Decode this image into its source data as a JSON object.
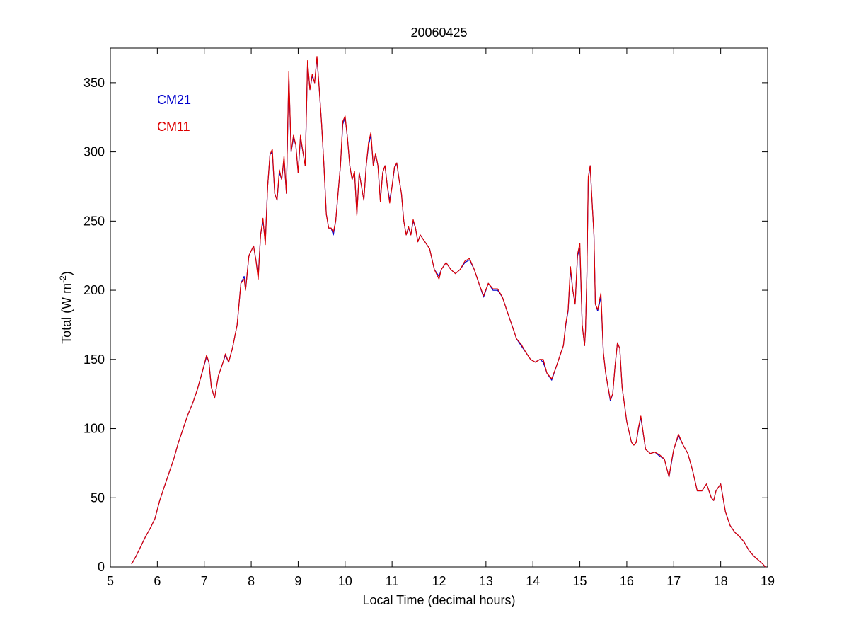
{
  "chart_data": {
    "type": "line",
    "title": "20060425",
    "xlabel": "Local Time (decimal hours)",
    "ylabel_main": "Total (W m",
    "ylabel_sup": "-2",
    "ylabel_close": ")",
    "xlim": [
      5,
      19
    ],
    "ylim": [
      0,
      375
    ],
    "x_ticks": [
      5,
      6,
      7,
      8,
      9,
      10,
      11,
      12,
      13,
      14,
      15,
      16,
      17,
      18,
      19
    ],
    "y_ticks": [
      0,
      50,
      100,
      150,
      200,
      250,
      300,
      350
    ],
    "grid": false,
    "legend_position": "top-left",
    "series": [
      {
        "name": "CM21",
        "color": "#0000cc",
        "x": [
          5.45,
          5.55,
          5.65,
          5.75,
          5.85,
          5.95,
          6.05,
          6.15,
          6.25,
          6.35,
          6.45,
          6.55,
          6.65,
          6.75,
          6.85,
          6.95,
          7.05,
          7.1,
          7.15,
          7.22,
          7.3,
          7.4,
          7.45,
          7.52,
          7.6,
          7.7,
          7.78,
          7.85,
          7.88,
          7.95,
          8.05,
          8.1,
          8.15,
          8.2,
          8.25,
          8.3,
          8.35,
          8.4,
          8.45,
          8.5,
          8.55,
          8.6,
          8.65,
          8.7,
          8.75,
          8.8,
          8.85,
          8.9,
          8.95,
          9.0,
          9.05,
          9.1,
          9.15,
          9.2,
          9.25,
          9.3,
          9.35,
          9.4,
          9.45,
          9.5,
          9.55,
          9.6,
          9.65,
          9.7,
          9.75,
          9.8,
          9.85,
          9.9,
          9.95,
          10.0,
          10.05,
          10.1,
          10.15,
          10.2,
          10.25,
          10.3,
          10.35,
          10.4,
          10.45,
          10.5,
          10.55,
          10.6,
          10.65,
          10.7,
          10.75,
          10.8,
          10.85,
          10.9,
          10.95,
          11.0,
          11.05,
          11.1,
          11.15,
          11.2,
          11.25,
          11.3,
          11.35,
          11.4,
          11.45,
          11.5,
          11.55,
          11.6,
          11.7,
          11.8,
          11.9,
          12.0,
          12.05,
          12.15,
          12.25,
          12.35,
          12.45,
          12.55,
          12.65,
          12.75,
          12.85,
          12.95,
          13.05,
          13.15,
          13.25,
          13.35,
          13.45,
          13.55,
          13.65,
          13.75,
          13.85,
          13.95,
          14.05,
          14.15,
          14.22,
          14.3,
          14.4,
          14.5,
          14.6,
          14.65,
          14.7,
          14.75,
          14.8,
          14.85,
          14.9,
          14.95,
          15.0,
          15.05,
          15.1,
          15.12,
          15.15,
          15.18,
          15.22,
          15.25,
          15.3,
          15.33,
          15.38,
          15.45,
          15.5,
          15.55,
          15.6,
          15.65,
          15.7,
          15.75,
          15.8,
          15.85,
          15.9,
          16.0,
          16.1,
          16.15,
          16.2,
          16.25,
          16.3,
          16.4,
          16.5,
          16.6,
          16.7,
          16.8,
          16.9,
          16.95,
          17.0,
          17.1,
          17.2,
          17.3,
          17.4,
          17.5,
          17.6,
          17.7,
          17.8,
          17.85,
          17.9,
          18.0,
          18.1,
          18.2,
          18.3,
          18.4,
          18.5,
          18.6,
          18.7,
          18.8,
          18.9,
          18.95
        ],
        "y": [
          2,
          8,
          15,
          22,
          28,
          35,
          48,
          58,
          68,
          78,
          90,
          100,
          110,
          118,
          128,
          140,
          152,
          148,
          130,
          122,
          138,
          148,
          153,
          148,
          158,
          175,
          205,
          210,
          200,
          225,
          232,
          222,
          210,
          240,
          250,
          235,
          275,
          298,
          300,
          270,
          265,
          285,
          280,
          295,
          270,
          355,
          300,
          310,
          305,
          285,
          310,
          300,
          290,
          365,
          345,
          355,
          350,
          368,
          345,
          320,
          290,
          255,
          245,
          245,
          240,
          250,
          270,
          290,
          320,
          325,
          310,
          290,
          280,
          285,
          255,
          285,
          275,
          265,
          290,
          305,
          312,
          290,
          298,
          290,
          265,
          285,
          290,
          275,
          265,
          275,
          288,
          292,
          280,
          270,
          250,
          240,
          245,
          240,
          250,
          245,
          235,
          240,
          235,
          230,
          215,
          210,
          215,
          220,
          215,
          212,
          215,
          220,
          222,
          215,
          205,
          195,
          205,
          200,
          200,
          195,
          185,
          175,
          165,
          160,
          155,
          150,
          148,
          150,
          148,
          140,
          135,
          145,
          155,
          160,
          175,
          185,
          215,
          200,
          190,
          225,
          230,
          175,
          160,
          170,
          210,
          280,
          290,
          270,
          240,
          190,
          185,
          195,
          155,
          140,
          130,
          120,
          125,
          145,
          162,
          158,
          130,
          105,
          90,
          88,
          90,
          100,
          108,
          85,
          82,
          83,
          80,
          78,
          65,
          75,
          85,
          95,
          88,
          82,
          70,
          55,
          55,
          60,
          50,
          48,
          55,
          60,
          40,
          30,
          25,
          22,
          18,
          12,
          8,
          5,
          2,
          0
        ]
      },
      {
        "name": "CM11",
        "color": "#dd0000",
        "x": [
          5.45,
          5.55,
          5.65,
          5.75,
          5.85,
          5.95,
          6.05,
          6.15,
          6.25,
          6.35,
          6.45,
          6.55,
          6.65,
          6.75,
          6.85,
          6.95,
          7.05,
          7.1,
          7.15,
          7.22,
          7.3,
          7.4,
          7.45,
          7.52,
          7.6,
          7.7,
          7.78,
          7.85,
          7.88,
          7.95,
          8.05,
          8.1,
          8.15,
          8.2,
          8.25,
          8.3,
          8.35,
          8.4,
          8.45,
          8.5,
          8.55,
          8.6,
          8.65,
          8.7,
          8.75,
          8.8,
          8.85,
          8.9,
          8.95,
          9.0,
          9.05,
          9.1,
          9.15,
          9.2,
          9.25,
          9.3,
          9.35,
          9.4,
          9.45,
          9.5,
          9.55,
          9.6,
          9.65,
          9.7,
          9.75,
          9.8,
          9.85,
          9.9,
          9.95,
          10.0,
          10.05,
          10.1,
          10.15,
          10.2,
          10.25,
          10.3,
          10.35,
          10.4,
          10.45,
          10.5,
          10.55,
          10.6,
          10.65,
          10.7,
          10.75,
          10.8,
          10.85,
          10.9,
          10.95,
          11.0,
          11.05,
          11.1,
          11.15,
          11.2,
          11.25,
          11.3,
          11.35,
          11.4,
          11.45,
          11.5,
          11.55,
          11.6,
          11.7,
          11.8,
          11.9,
          12.0,
          12.05,
          12.15,
          12.25,
          12.35,
          12.45,
          12.55,
          12.65,
          12.75,
          12.85,
          12.95,
          13.05,
          13.15,
          13.25,
          13.35,
          13.45,
          13.55,
          13.65,
          13.75,
          13.85,
          13.95,
          14.05,
          14.15,
          14.22,
          14.3,
          14.4,
          14.5,
          14.6,
          14.65,
          14.7,
          14.75,
          14.8,
          14.85,
          14.9,
          14.95,
          15.0,
          15.05,
          15.1,
          15.12,
          15.15,
          15.18,
          15.22,
          15.25,
          15.3,
          15.33,
          15.38,
          15.45,
          15.5,
          15.55,
          15.6,
          15.65,
          15.7,
          15.75,
          15.8,
          15.85,
          15.9,
          16.0,
          16.1,
          16.15,
          16.2,
          16.25,
          16.3,
          16.4,
          16.5,
          16.6,
          16.7,
          16.8,
          16.9,
          16.95,
          17.0,
          17.1,
          17.2,
          17.3,
          17.4,
          17.5,
          17.6,
          17.7,
          17.8,
          17.85,
          17.9,
          18.0,
          18.1,
          18.2,
          18.3,
          18.4,
          18.5,
          18.6,
          18.7,
          18.8,
          18.9,
          18.95
        ],
        "y": [
          2,
          8,
          15,
          22,
          28,
          35,
          48,
          58,
          68,
          78,
          90,
          100,
          110,
          118,
          128,
          140,
          153,
          148,
          130,
          122,
          138,
          148,
          154,
          148,
          158,
          175,
          205,
          208,
          200,
          225,
          232,
          222,
          208,
          240,
          252,
          233,
          275,
          298,
          302,
          270,
          265,
          287,
          280,
          297,
          270,
          358,
          300,
          312,
          305,
          285,
          312,
          300,
          290,
          366,
          345,
          356,
          350,
          369,
          345,
          320,
          290,
          255,
          245,
          245,
          242,
          250,
          270,
          290,
          322,
          326,
          310,
          290,
          280,
          286,
          254,
          285,
          275,
          265,
          290,
          307,
          314,
          290,
          299,
          290,
          264,
          285,
          290,
          275,
          263,
          275,
          289,
          292,
          280,
          270,
          250,
          240,
          246,
          240,
          251,
          245,
          235,
          240,
          235,
          230,
          215,
          208,
          215,
          220,
          215,
          212,
          215,
          221,
          223,
          215,
          205,
          196,
          205,
          201,
          201,
          195,
          185,
          175,
          165,
          161,
          155,
          150,
          148,
          150,
          150,
          140,
          136,
          145,
          155,
          160,
          176,
          186,
          217,
          200,
          190,
          226,
          234,
          175,
          160,
          170,
          210,
          282,
          290,
          270,
          240,
          190,
          186,
          198,
          155,
          140,
          130,
          121,
          125,
          145,
          162,
          158,
          130,
          105,
          90,
          88,
          90,
          101,
          109,
          85,
          82,
          83,
          81,
          78,
          65,
          76,
          85,
          96,
          88,
          82,
          70,
          55,
          55,
          60,
          50,
          48,
          55,
          60,
          40,
          30,
          25,
          22,
          18,
          12,
          8,
          5,
          2,
          0
        ]
      }
    ]
  }
}
